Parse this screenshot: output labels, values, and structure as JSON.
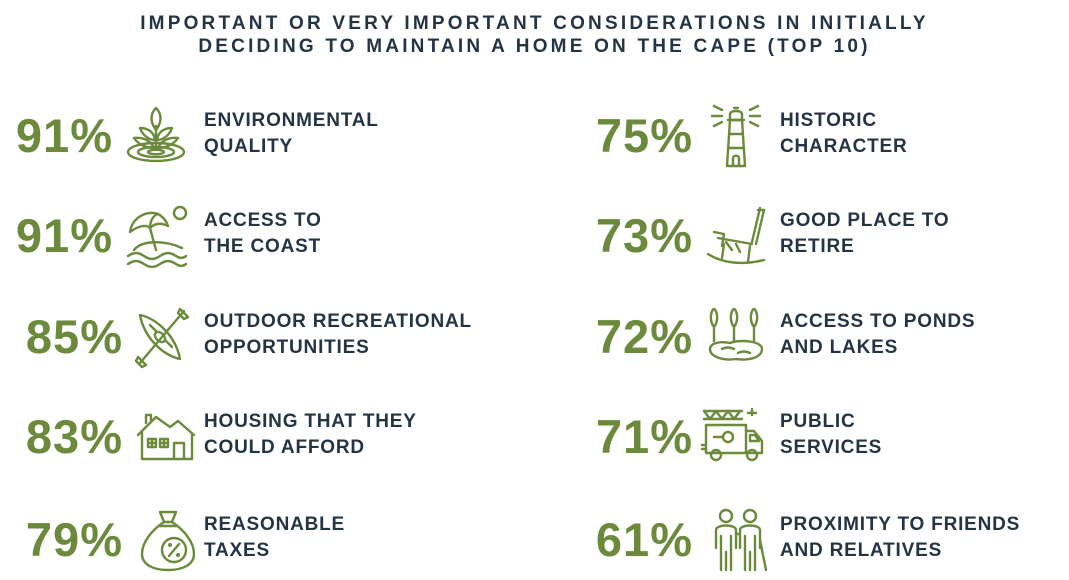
{
  "title": {
    "line1": "IMPORTANT OR VERY IMPORTANT CONSIDERATIONS IN INITIALLY",
    "line2": "DECIDING TO MAINTAIN A HOME ON THE CAPE (TOP 10)"
  },
  "colors": {
    "accent": "#6b8a3c",
    "text": "#243445"
  },
  "items": [
    {
      "pct": "91%",
      "line1": "ENVIRONMENTAL",
      "line2": "QUALITY",
      "icon": "sprout-water-icon"
    },
    {
      "pct": "91%",
      "line1": "ACCESS TO",
      "line2": "THE COAST",
      "icon": "beach-umbrella-icon"
    },
    {
      "pct": "85%",
      "line1": "OUTDOOR RECREATIONAL",
      "line2": "OPPORTUNITIES",
      "icon": "kayak-icon"
    },
    {
      "pct": "83%",
      "line1": "HOUSING THAT THEY",
      "line2": "COULD AFFORD",
      "icon": "house-icon"
    },
    {
      "pct": "79%",
      "line1": "REASONABLE",
      "line2": "TAXES",
      "icon": "tax-bag-icon"
    },
    {
      "pct": "75%",
      "line1": "HISTORIC",
      "line2": "CHARACTER",
      "icon": "lighthouse-icon"
    },
    {
      "pct": "73%",
      "line1": "GOOD PLACE TO",
      "line2": "RETIRE",
      "icon": "rocking-chair-icon"
    },
    {
      "pct": "72%",
      "line1": "ACCESS TO PONDS",
      "line2": "AND LAKES",
      "icon": "pond-trees-icon"
    },
    {
      "pct": "71%",
      "line1": "PUBLIC",
      "line2": "SERVICES",
      "icon": "fire-truck-icon"
    },
    {
      "pct": "61%",
      "line1": "PROXIMITY TO FRIENDS",
      "line2": "AND RELATIVES",
      "icon": "two-people-icon"
    }
  ]
}
